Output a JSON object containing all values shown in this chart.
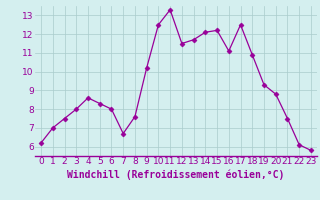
{
  "x": [
    0,
    1,
    2,
    3,
    4,
    5,
    6,
    7,
    8,
    9,
    10,
    11,
    12,
    13,
    14,
    15,
    16,
    17,
    18,
    19,
    20,
    21,
    22,
    23
  ],
  "y": [
    6.2,
    7.0,
    7.5,
    8.0,
    8.6,
    8.3,
    8.0,
    6.7,
    7.6,
    10.2,
    12.5,
    13.3,
    11.5,
    11.7,
    12.1,
    12.2,
    11.1,
    12.5,
    10.9,
    9.3,
    8.8,
    7.5,
    6.1,
    5.8
  ],
  "line_color": "#990099",
  "marker": "D",
  "marker_size": 2.5,
  "bg_color": "#d4efef",
  "grid_color": "#aacccc",
  "xlabel": "Windchill (Refroidissement éolien,°C)",
  "xlabel_color": "#990099",
  "axis_color": "#990099",
  "ylim": [
    5.5,
    13.5
  ],
  "xlim": [
    -0.5,
    23.5
  ],
  "yticks": [
    6,
    7,
    8,
    9,
    10,
    11,
    12,
    13
  ],
  "xticks": [
    0,
    1,
    2,
    3,
    4,
    5,
    6,
    7,
    8,
    9,
    10,
    11,
    12,
    13,
    14,
    15,
    16,
    17,
    18,
    19,
    20,
    21,
    22,
    23
  ],
  "tick_fontsize": 6.5,
  "label_fontsize": 7,
  "spine_color": "#990099"
}
